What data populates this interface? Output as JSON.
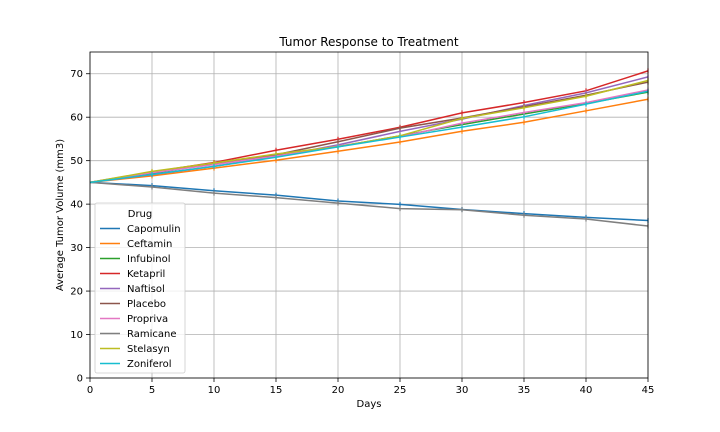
{
  "chart_data": {
    "type": "line",
    "title": "Tumor Response to Treatment",
    "xlabel": "Days",
    "ylabel": "Average Tumor Volume (mm3)",
    "xlim": [
      0,
      45
    ],
    "ylim": [
      0,
      75
    ],
    "xticks": [
      0,
      5,
      10,
      15,
      20,
      25,
      30,
      35,
      40,
      45
    ],
    "yticks": [
      0,
      10,
      20,
      30,
      40,
      50,
      60,
      70
    ],
    "grid": true,
    "legend_title": "Drug",
    "legend_position": "lower-left",
    "x": [
      0,
      5,
      10,
      15,
      20,
      25,
      30,
      35,
      40,
      45
    ],
    "series": [
      {
        "name": "Capomulin",
        "color": "#1f77b4",
        "values": [
          45.0,
          44.27,
          43.08,
          42.06,
          40.72,
          39.94,
          38.77,
          37.82,
          36.96,
          36.24
        ]
      },
      {
        "name": "Ceftamin",
        "color": "#ff7f0e",
        "values": [
          45.0,
          46.5,
          48.29,
          50.09,
          52.16,
          54.29,
          56.77,
          58.83,
          61.47,
          64.13
        ]
      },
      {
        "name": "Infubinol",
        "color": "#2ca02c",
        "values": [
          45.0,
          47.06,
          49.4,
          51.3,
          53.2,
          55.72,
          58.3,
          60.74,
          63.16,
          65.76
        ]
      },
      {
        "name": "Ketapril",
        "color": "#d62728",
        "values": [
          45.0,
          47.39,
          49.58,
          52.4,
          54.92,
          57.68,
          60.99,
          63.37,
          66.07,
          70.66
        ]
      },
      {
        "name": "Naftisol",
        "color": "#9467bd",
        "values": [
          45.0,
          46.8,
          48.69,
          50.93,
          53.64,
          56.73,
          59.56,
          62.69,
          65.6,
          69.27
        ]
      },
      {
        "name": "Placebo",
        "color": "#8c564b",
        "values": [
          45.0,
          47.13,
          49.42,
          51.36,
          54.36,
          57.48,
          59.81,
          62.42,
          65.05,
          68.08
        ]
      },
      {
        "name": "Propriva",
        "color": "#e377c2",
        "values": [
          45.0,
          47.25,
          49.1,
          51.07,
          53.35,
          55.5,
          58.63,
          61.08,
          63.35,
          66.26
        ]
      },
      {
        "name": "Ramicane",
        "color": "#7f7f7f",
        "values": [
          45.0,
          43.94,
          42.53,
          41.5,
          40.24,
          38.97,
          38.7,
          37.45,
          36.57,
          34.96
        ]
      },
      {
        "name": "Stelasyn",
        "color": "#bcbd22",
        "values": [
          45.0,
          47.53,
          49.46,
          51.53,
          53.22,
          55.72,
          59.72,
          62.16,
          64.82,
          68.44
        ]
      },
      {
        "name": "Zoniferol",
        "color": "#17becf",
        "values": [
          45.0,
          46.85,
          48.69,
          50.78,
          53.17,
          55.43,
          57.71,
          60.09,
          63.0,
          65.96
        ]
      }
    ]
  }
}
